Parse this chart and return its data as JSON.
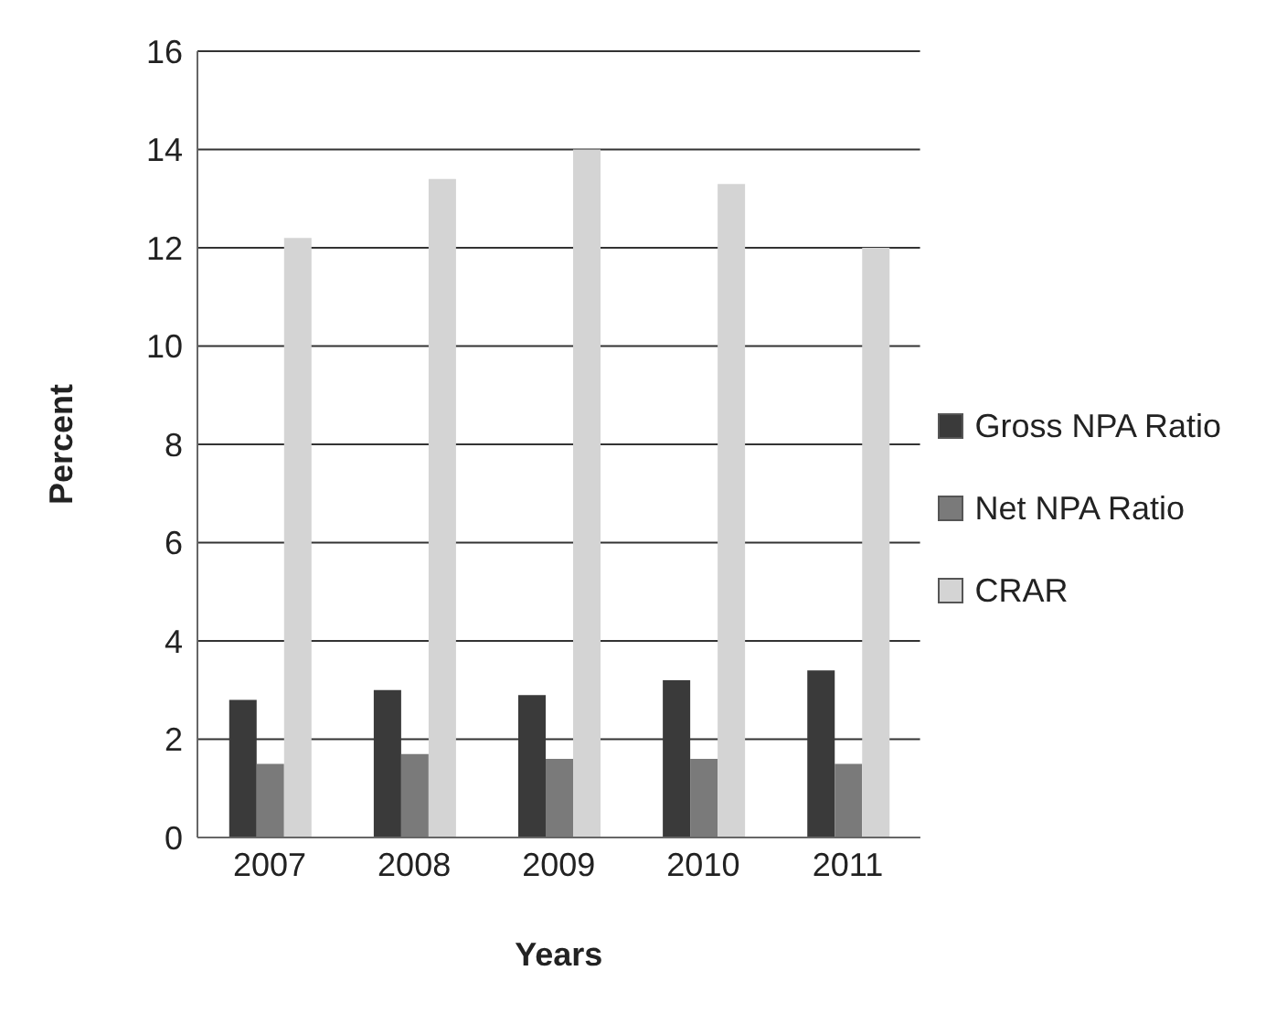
{
  "chart_data": {
    "type": "bar",
    "xlabel": "Years",
    "ylabel": "Percent",
    "categories": [
      "2007",
      "2008",
      "2009",
      "2010",
      "2011"
    ],
    "series": [
      {
        "name": "Gross NPA Ratio",
        "color": "#3a3a3a",
        "values": [
          2.8,
          3.0,
          2.9,
          3.2,
          3.4
        ]
      },
      {
        "name": "Net NPA Ratio",
        "color": "#7a7a7a",
        "values": [
          1.5,
          1.7,
          1.6,
          1.6,
          1.5
        ]
      },
      {
        "name": "CRAR",
        "color": "#d4d4d4",
        "values": [
          12.2,
          13.4,
          14.0,
          13.3,
          12.0
        ]
      }
    ],
    "ylim": [
      0,
      16
    ],
    "yticks": [
      0,
      2,
      4,
      6,
      8,
      10,
      12,
      14,
      16
    ],
    "grid": "y",
    "legend": "right"
  }
}
